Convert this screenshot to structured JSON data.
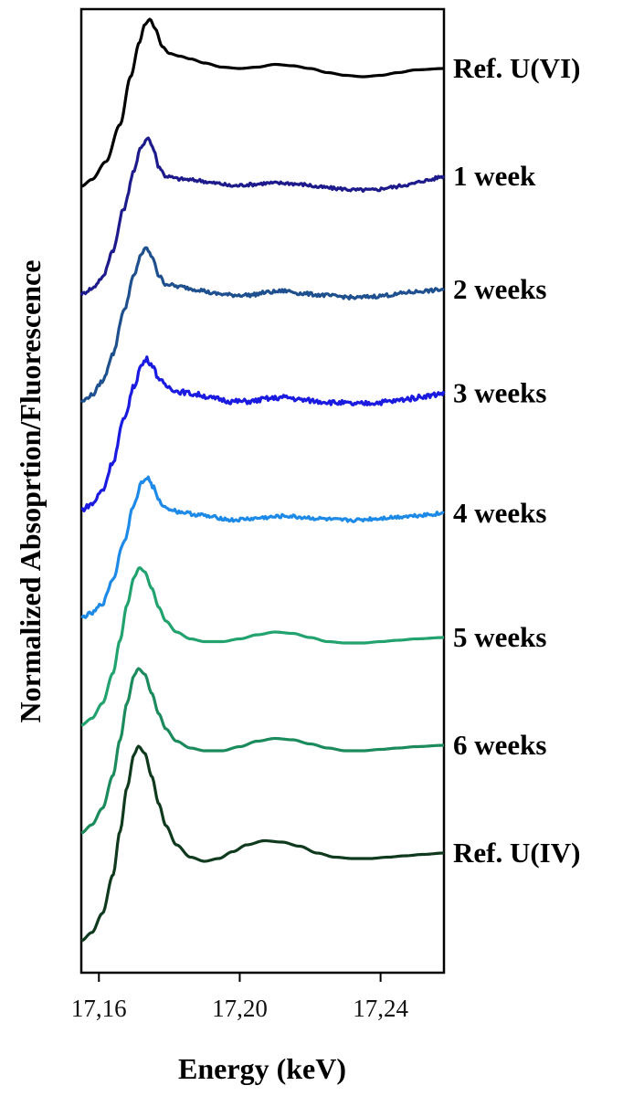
{
  "chart_data": {
    "type": "line",
    "xlabel": "Energy (keV)",
    "ylabel": "Normalized Absoprtion/Fluorescence",
    "xlim": [
      17.155,
      17.258
    ],
    "x_ticks": [
      17.16,
      17.2,
      17.24
    ],
    "x_tick_labels": [
      "17,16",
      "17,20",
      "17,24"
    ],
    "y_ticks": [],
    "grid": false,
    "legend": "labels at right end of each curve",
    "stacked_offset": true,
    "series": [
      {
        "name": "Ref. U(VI)",
        "color": "#000000",
        "noise": 0,
        "offset": 7,
        "points": [
          [
            17.155,
            0.0
          ],
          [
            17.158,
            0.05
          ],
          [
            17.162,
            0.18
          ],
          [
            17.166,
            0.45
          ],
          [
            17.169,
            0.8
          ],
          [
            17.1715,
            1.05
          ],
          [
            17.173,
            1.18
          ],
          [
            17.1745,
            1.22
          ],
          [
            17.176,
            1.15
          ],
          [
            17.178,
            1.02
          ],
          [
            17.18,
            0.97
          ],
          [
            17.183,
            0.95
          ],
          [
            17.186,
            0.93
          ],
          [
            17.19,
            0.9
          ],
          [
            17.195,
            0.87
          ],
          [
            17.2,
            0.86
          ],
          [
            17.205,
            0.87
          ],
          [
            17.21,
            0.89
          ],
          [
            17.215,
            0.88
          ],
          [
            17.22,
            0.86
          ],
          [
            17.225,
            0.83
          ],
          [
            17.23,
            0.81
          ],
          [
            17.235,
            0.8
          ],
          [
            17.24,
            0.81
          ],
          [
            17.245,
            0.83
          ],
          [
            17.25,
            0.85
          ],
          [
            17.258,
            0.86
          ]
        ]
      },
      {
        "name": "1 week",
        "color": "#1d1b8c",
        "noise": 0.012,
        "offset": 6,
        "points": [
          [
            17.155,
            0.0
          ],
          [
            17.158,
            0.04
          ],
          [
            17.161,
            0.12
          ],
          [
            17.164,
            0.32
          ],
          [
            17.167,
            0.62
          ],
          [
            17.17,
            0.9
          ],
          [
            17.172,
            1.08
          ],
          [
            17.174,
            1.14
          ],
          [
            17.1755,
            1.06
          ],
          [
            17.177,
            0.93
          ],
          [
            17.179,
            0.86
          ],
          [
            17.183,
            0.84
          ],
          [
            17.188,
            0.83
          ],
          [
            17.193,
            0.81
          ],
          [
            17.198,
            0.79
          ],
          [
            17.203,
            0.8
          ],
          [
            17.208,
            0.81
          ],
          [
            17.213,
            0.81
          ],
          [
            17.218,
            0.8
          ],
          [
            17.223,
            0.78
          ],
          [
            17.228,
            0.77
          ],
          [
            17.233,
            0.76
          ],
          [
            17.238,
            0.76
          ],
          [
            17.243,
            0.78
          ],
          [
            17.248,
            0.8
          ],
          [
            17.253,
            0.83
          ],
          [
            17.258,
            0.86
          ]
        ]
      },
      {
        "name": "2 weeks",
        "color": "#1e4f8e",
        "noise": 0.013,
        "offset": 5,
        "points": [
          [
            17.155,
            0.0
          ],
          [
            17.158,
            0.05
          ],
          [
            17.161,
            0.15
          ],
          [
            17.164,
            0.35
          ],
          [
            17.167,
            0.66
          ],
          [
            17.17,
            0.92
          ],
          [
            17.172,
            1.08
          ],
          [
            17.1735,
            1.12
          ],
          [
            17.1755,
            1.04
          ],
          [
            17.177,
            0.92
          ],
          [
            17.179,
            0.86
          ],
          [
            17.183,
            0.84
          ],
          [
            17.188,
            0.82
          ],
          [
            17.193,
            0.79
          ],
          [
            17.198,
            0.78
          ],
          [
            17.203,
            0.78
          ],
          [
            17.208,
            0.8
          ],
          [
            17.213,
            0.81
          ],
          [
            17.218,
            0.79
          ],
          [
            17.223,
            0.78
          ],
          [
            17.228,
            0.77
          ],
          [
            17.233,
            0.76
          ],
          [
            17.238,
            0.77
          ],
          [
            17.243,
            0.78
          ],
          [
            17.248,
            0.8
          ],
          [
            17.253,
            0.81
          ],
          [
            17.258,
            0.82
          ]
        ]
      },
      {
        "name": "3 weeks",
        "color": "#1a1ae0",
        "noise": 0.018,
        "offset": 4,
        "points": [
          [
            17.155,
            0.0
          ],
          [
            17.158,
            0.04
          ],
          [
            17.161,
            0.14
          ],
          [
            17.164,
            0.35
          ],
          [
            17.167,
            0.65
          ],
          [
            17.17,
            0.9
          ],
          [
            17.172,
            1.05
          ],
          [
            17.1735,
            1.1
          ],
          [
            17.175,
            1.06
          ],
          [
            17.177,
            0.96
          ],
          [
            17.179,
            0.9
          ],
          [
            17.183,
            0.86
          ],
          [
            17.188,
            0.84
          ],
          [
            17.193,
            0.81
          ],
          [
            17.198,
            0.79
          ],
          [
            17.203,
            0.79
          ],
          [
            17.208,
            0.81
          ],
          [
            17.213,
            0.82
          ],
          [
            17.218,
            0.8
          ],
          [
            17.223,
            0.79
          ],
          [
            17.228,
            0.78
          ],
          [
            17.233,
            0.77
          ],
          [
            17.238,
            0.78
          ],
          [
            17.243,
            0.79
          ],
          [
            17.248,
            0.81
          ],
          [
            17.253,
            0.83
          ],
          [
            17.258,
            0.85
          ]
        ]
      },
      {
        "name": "4 weeks",
        "color": "#1e8ae8",
        "noise": 0.013,
        "offset": 3,
        "points": [
          [
            17.155,
            0.0
          ],
          [
            17.158,
            0.03
          ],
          [
            17.161,
            0.1
          ],
          [
            17.164,
            0.28
          ],
          [
            17.167,
            0.55
          ],
          [
            17.17,
            0.82
          ],
          [
            17.172,
            0.98
          ],
          [
            17.1738,
            1.02
          ],
          [
            17.1755,
            0.95
          ],
          [
            17.177,
            0.85
          ],
          [
            17.179,
            0.8
          ],
          [
            17.183,
            0.77
          ],
          [
            17.188,
            0.75
          ],
          [
            17.193,
            0.73
          ],
          [
            17.198,
            0.71
          ],
          [
            17.203,
            0.72
          ],
          [
            17.208,
            0.73
          ],
          [
            17.213,
            0.74
          ],
          [
            17.218,
            0.73
          ],
          [
            17.223,
            0.72
          ],
          [
            17.228,
            0.71
          ],
          [
            17.233,
            0.71
          ],
          [
            17.238,
            0.72
          ],
          [
            17.243,
            0.73
          ],
          [
            17.248,
            0.74
          ],
          [
            17.253,
            0.75
          ],
          [
            17.258,
            0.76
          ]
        ]
      },
      {
        "name": "5 weeks",
        "color": "#21a26e",
        "noise": 0,
        "offset": 2,
        "points": [
          [
            17.155,
            0.0
          ],
          [
            17.158,
            0.05
          ],
          [
            17.161,
            0.16
          ],
          [
            17.164,
            0.38
          ],
          [
            17.166,
            0.62
          ],
          [
            17.168,
            0.88
          ],
          [
            17.17,
            1.08
          ],
          [
            17.1715,
            1.15
          ],
          [
            17.173,
            1.12
          ],
          [
            17.175,
            1.0
          ],
          [
            17.177,
            0.86
          ],
          [
            17.179,
            0.76
          ],
          [
            17.182,
            0.68
          ],
          [
            17.186,
            0.63
          ],
          [
            17.19,
            0.61
          ],
          [
            17.195,
            0.61
          ],
          [
            17.2,
            0.63
          ],
          [
            17.205,
            0.66
          ],
          [
            17.21,
            0.68
          ],
          [
            17.215,
            0.67
          ],
          [
            17.22,
            0.64
          ],
          [
            17.225,
            0.61
          ],
          [
            17.23,
            0.6
          ],
          [
            17.235,
            0.6
          ],
          [
            17.24,
            0.61
          ],
          [
            17.245,
            0.62
          ],
          [
            17.25,
            0.63
          ],
          [
            17.258,
            0.64
          ]
        ]
      },
      {
        "name": "6 weeks",
        "color": "#1b8a5c",
        "noise": 0,
        "offset": 1,
        "points": [
          [
            17.155,
            0.0
          ],
          [
            17.158,
            0.06
          ],
          [
            17.161,
            0.18
          ],
          [
            17.164,
            0.42
          ],
          [
            17.166,
            0.68
          ],
          [
            17.168,
            0.95
          ],
          [
            17.17,
            1.15
          ],
          [
            17.1712,
            1.2
          ],
          [
            17.173,
            1.16
          ],
          [
            17.175,
            1.02
          ],
          [
            17.177,
            0.87
          ],
          [
            17.179,
            0.76
          ],
          [
            17.182,
            0.67
          ],
          [
            17.186,
            0.62
          ],
          [
            17.19,
            0.6
          ],
          [
            17.195,
            0.6
          ],
          [
            17.2,
            0.63
          ],
          [
            17.205,
            0.67
          ],
          [
            17.21,
            0.69
          ],
          [
            17.215,
            0.68
          ],
          [
            17.22,
            0.65
          ],
          [
            17.225,
            0.62
          ],
          [
            17.23,
            0.6
          ],
          [
            17.235,
            0.6
          ],
          [
            17.24,
            0.61
          ],
          [
            17.245,
            0.62
          ],
          [
            17.25,
            0.63
          ],
          [
            17.258,
            0.64
          ]
        ]
      },
      {
        "name": "Ref. U(IV)",
        "color": "#0f3a1e",
        "noise": 0,
        "offset": 0,
        "points": [
          [
            17.155,
            0.0
          ],
          [
            17.158,
            0.06
          ],
          [
            17.161,
            0.2
          ],
          [
            17.164,
            0.48
          ],
          [
            17.166,
            0.8
          ],
          [
            17.168,
            1.12
          ],
          [
            17.17,
            1.36
          ],
          [
            17.1712,
            1.42
          ],
          [
            17.173,
            1.37
          ],
          [
            17.175,
            1.2
          ],
          [
            17.177,
            1.0
          ],
          [
            17.179,
            0.84
          ],
          [
            17.182,
            0.7
          ],
          [
            17.186,
            0.61
          ],
          [
            17.19,
            0.58
          ],
          [
            17.194,
            0.6
          ],
          [
            17.198,
            0.65
          ],
          [
            17.202,
            0.7
          ],
          [
            17.207,
            0.73
          ],
          [
            17.212,
            0.72
          ],
          [
            17.217,
            0.69
          ],
          [
            17.222,
            0.64
          ],
          [
            17.227,
            0.61
          ],
          [
            17.232,
            0.6
          ],
          [
            17.237,
            0.6
          ],
          [
            17.242,
            0.61
          ],
          [
            17.247,
            0.62
          ],
          [
            17.252,
            0.63
          ],
          [
            17.258,
            0.64
          ]
        ]
      }
    ]
  }
}
